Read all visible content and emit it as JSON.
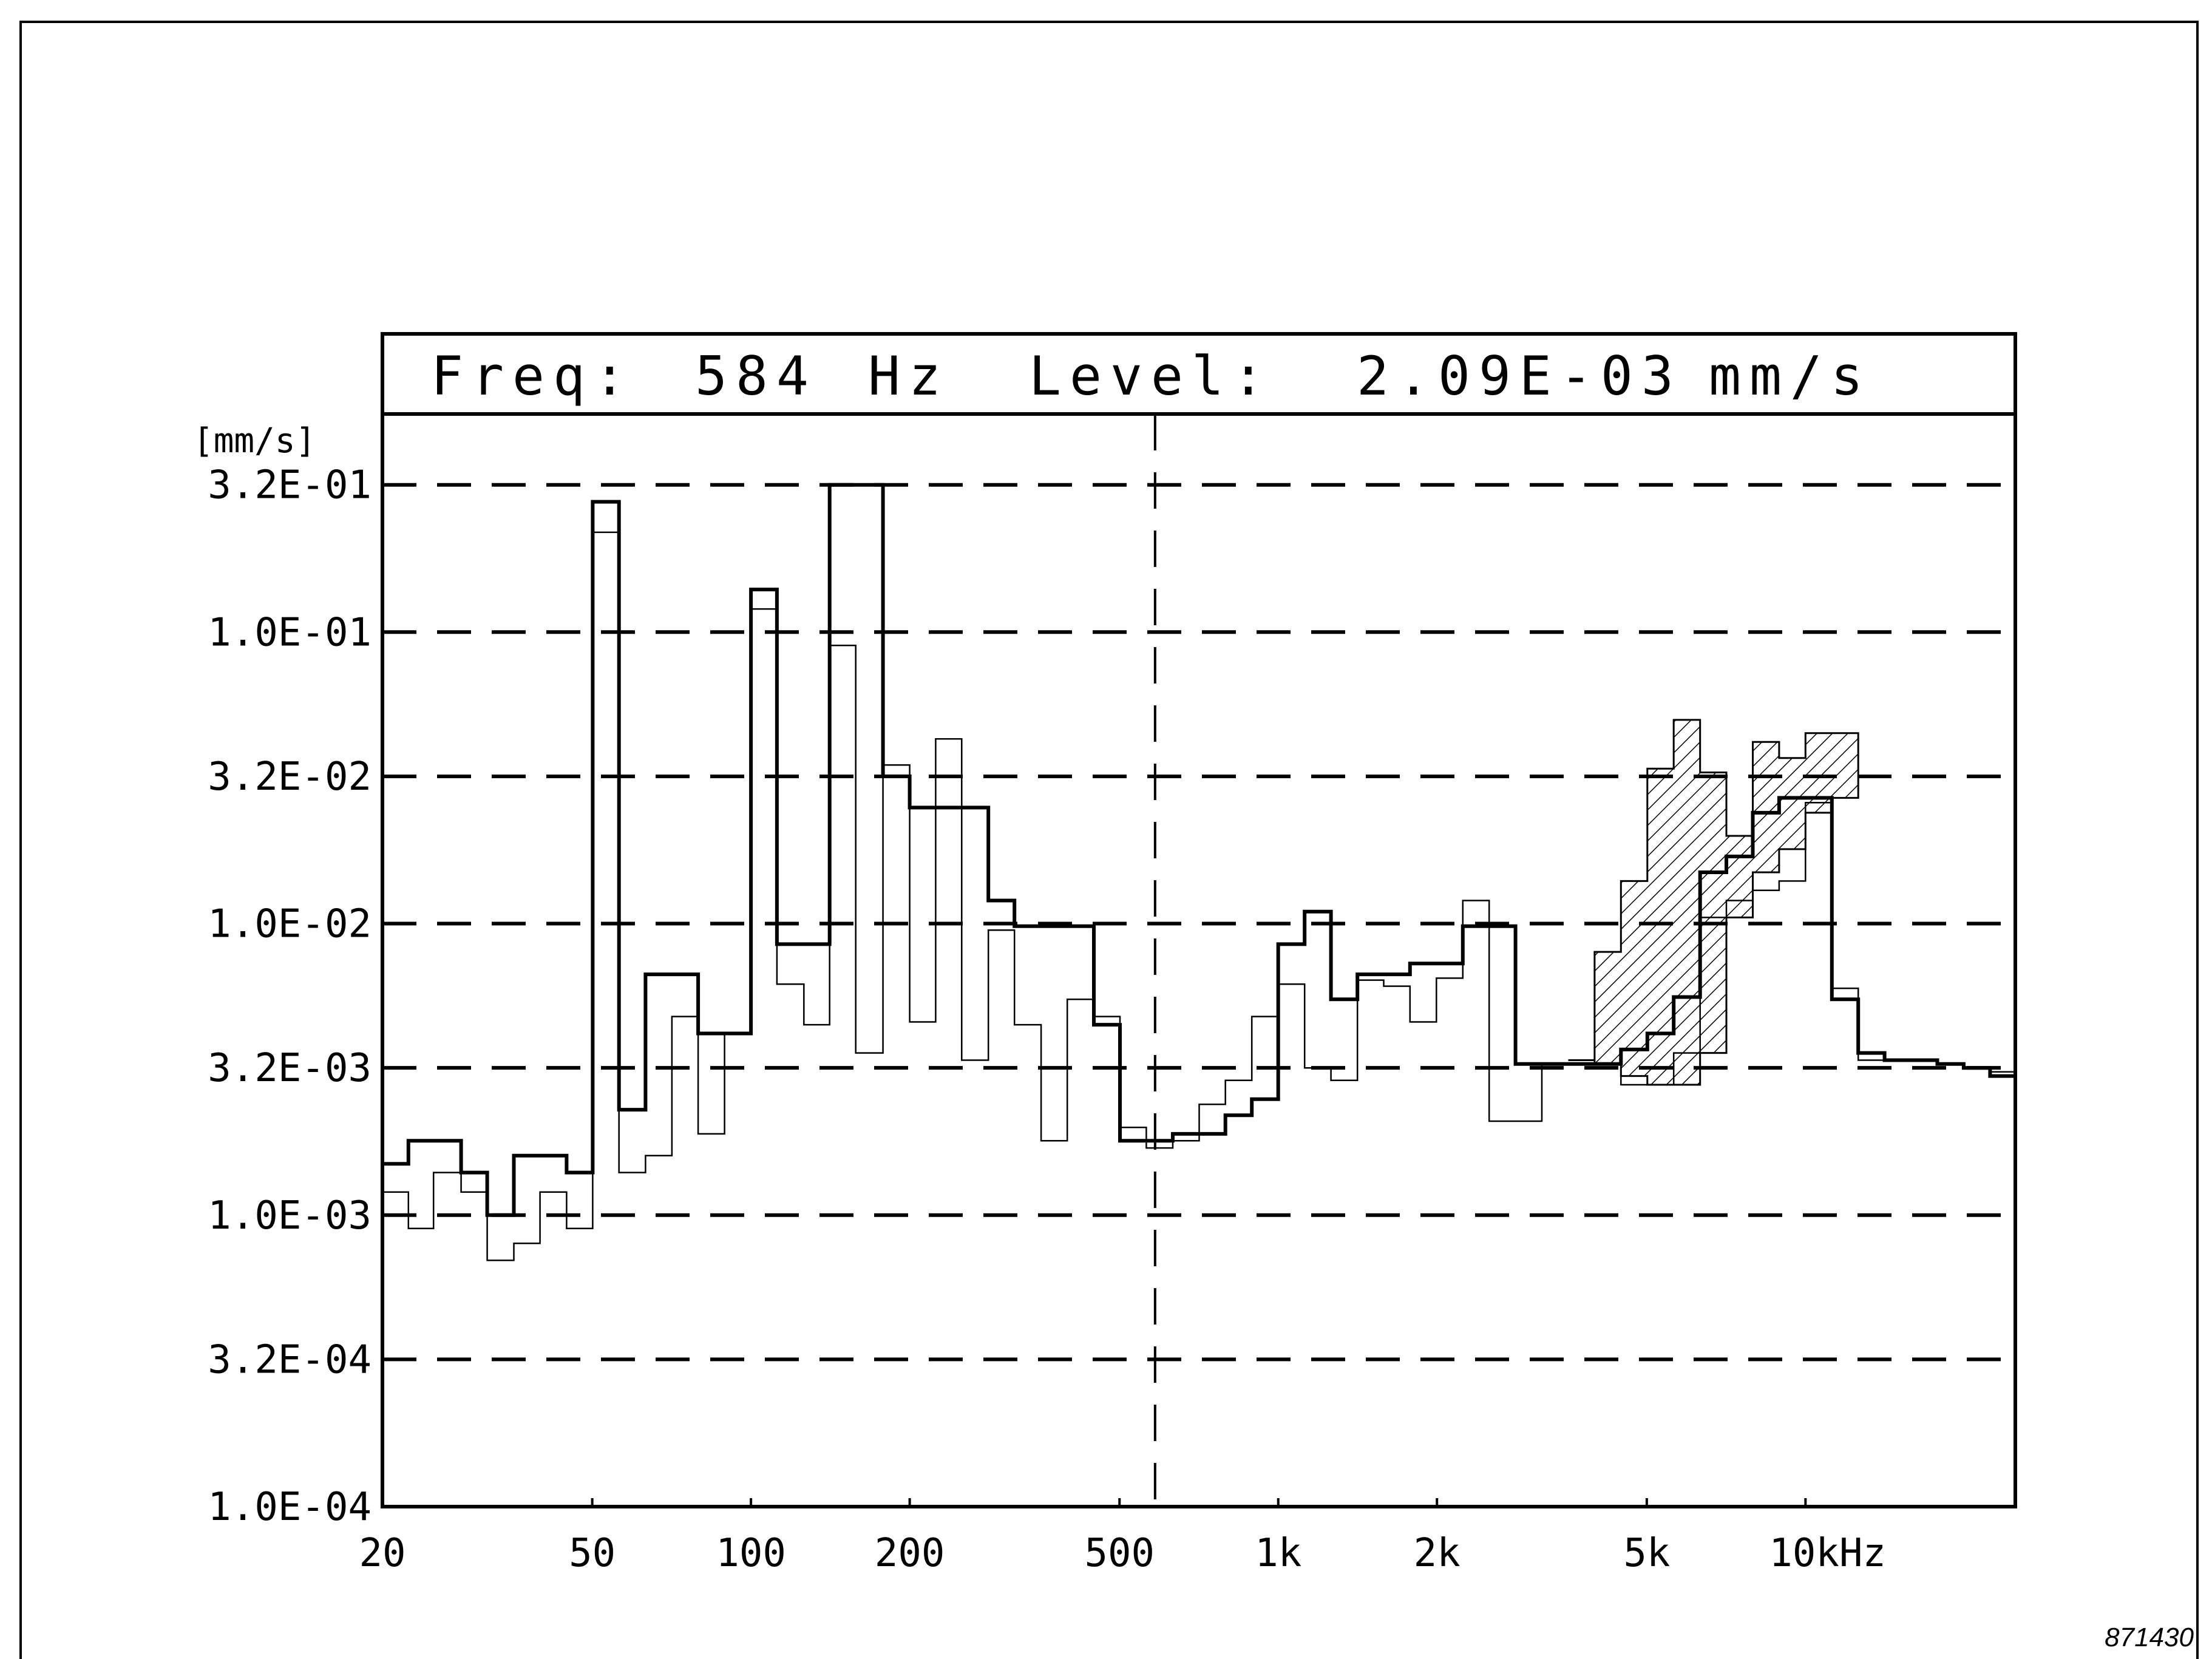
{
  "readout": {
    "freq_label": "Freq:",
    "freq_value": "584",
    "freq_unit": "Hz",
    "level_label": "Level:",
    "level_value": "2.09E-03",
    "level_unit": "mm/s"
  },
  "figure_number": "871430",
  "chart_data": {
    "type": "line",
    "title": "",
    "xlabel": "",
    "ylabel": "[mm/s]",
    "x_scale": "log",
    "y_scale": "log",
    "xlim": [
      20,
      25000
    ],
    "ylim": [
      0.0001,
      0.56
    ],
    "grid": "horizontal dashed",
    "y_ticks": [
      {
        "value": 0.0001,
        "label": "1.0E-04"
      },
      {
        "value": 0.00032,
        "label": "3.2E-04"
      },
      {
        "value": 0.001,
        "label": "1.0E-03"
      },
      {
        "value": 0.0032,
        "label": "3.2E-03"
      },
      {
        "value": 0.01,
        "label": "1.0E-02"
      },
      {
        "value": 0.032,
        "label": "3.2E-02"
      },
      {
        "value": 0.1,
        "label": "1.0E-01"
      },
      {
        "value": 0.32,
        "label": "3.2E-01"
      }
    ],
    "x_ticks": [
      {
        "value": 20,
        "label": "20"
      },
      {
        "value": 50,
        "label": "50"
      },
      {
        "value": 100,
        "label": "100"
      },
      {
        "value": 200,
        "label": "200"
      },
      {
        "value": 500,
        "label": "500"
      },
      {
        "value": 1000,
        "label": "1k"
      },
      {
        "value": 2000,
        "label": "2k"
      },
      {
        "value": 5000,
        "label": "5k"
      },
      {
        "value": 10000,
        "label": "10kHz"
      }
    ],
    "cursor_x": 584,
    "series": [
      {
        "line": "thick",
        "x": [
          20,
          22.4,
          25,
          28.2,
          31.6,
          35.5,
          39.8,
          44.7,
          50.1,
          56.2,
          63.1,
          70.8,
          79.4,
          89.1,
          100,
          112,
          126,
          141,
          158,
          178,
          200,
          224,
          251,
          282,
          316,
          355,
          398,
          447,
          501,
          562,
          631,
          708,
          794,
          891,
          1000,
          1122,
          1259,
          1413,
          1585,
          1778,
          1995,
          2239,
          2512,
          2818,
          3162,
          3548,
          3981,
          4467,
          5012,
          5623,
          6310,
          7079,
          7943,
          8913,
          10000,
          11220,
          12589,
          14125,
          15849,
          17783,
          19953,
          22387,
          25000
        ],
        "y": [
          0.0015,
          0.0018,
          0.0018,
          0.0014,
          0.001,
          0.0016,
          0.0016,
          0.0014,
          0.28,
          0.0023,
          0.0067,
          0.0067,
          0.0042,
          0.0042,
          0.14,
          0.0085,
          0.0085,
          0.32,
          0.32,
          0.032,
          0.025,
          0.025,
          0.025,
          0.012,
          0.0098,
          0.0098,
          0.0098,
          0.0045,
          0.0018,
          0.0018,
          0.0019,
          0.0019,
          0.0022,
          0.0025,
          0.0085,
          0.011,
          0.0055,
          0.0067,
          0.0067,
          0.0073,
          0.0073,
          0.0098,
          0.0098,
          0.0033,
          0.0033,
          0.0033,
          0.0033,
          0.0037,
          0.0042,
          0.0056,
          0.015,
          0.017,
          0.024,
          0.027,
          0.027,
          0.0055,
          0.0036,
          0.0034,
          0.0034,
          0.0033,
          0.0032,
          0.003,
          0.003
        ]
      },
      {
        "line": "thin",
        "x": [
          20,
          22.4,
          25,
          28.2,
          31.6,
          35.5,
          39.8,
          44.7,
          50.1,
          56.2,
          63.1,
          70.8,
          79.4,
          89.1,
          100,
          112,
          126,
          141,
          158,
          178,
          200,
          224,
          251,
          282,
          316,
          355,
          398,
          447,
          501,
          562,
          631,
          708,
          794,
          891,
          1000,
          1122,
          1259,
          1413,
          1585,
          1778,
          1995,
          2239,
          2512,
          2818,
          3162,
          3548,
          3981,
          4467,
          5012,
          5623,
          6310,
          7079,
          7943,
          8913,
          10000,
          11220,
          12589,
          14125,
          15849,
          17783,
          19953,
          22387,
          25000
        ],
        "y": [
          0.0012,
          0.0009,
          0.0014,
          0.0012,
          0.0007,
          0.0008,
          0.0012,
          0.0009,
          0.22,
          0.0014,
          0.0016,
          0.0048,
          0.0019,
          0.0042,
          0.12,
          0.0062,
          0.0045,
          0.09,
          0.0036,
          0.035,
          0.0046,
          0.043,
          0.0034,
          0.0095,
          0.0045,
          0.0018,
          0.0055,
          0.0048,
          0.002,
          0.0017,
          0.0018,
          0.0024,
          0.0029,
          0.0048,
          0.0062,
          0.0032,
          0.0029,
          0.0064,
          0.0061,
          0.0046,
          0.0065,
          0.012,
          0.0021,
          0.0021,
          0.0033,
          0.0033,
          0.0033,
          0.0028,
          0.0028,
          0.0036,
          0.0105,
          0.012,
          0.013,
          0.014,
          0.026,
          0.006,
          0.0034,
          0.0034,
          0.0034,
          0.0033,
          0.0032,
          0.0031,
          0.003
        ]
      },
      {
        "line": "hatched-envelope",
        "x": [
          3548,
          3981,
          4467,
          5012,
          5623,
          6310,
          7079,
          7943,
          8913,
          10000,
          11220
        ],
        "y_upper": [
          0.0034,
          0.008,
          0.014,
          0.034,
          0.05,
          0.033,
          0.02,
          0.042,
          0.037,
          0.045,
          0.045
        ],
        "y_lower": [
          0.0034,
          0.0033,
          0.003,
          0.0028,
          0.0028,
          0.0036,
          0.0105,
          0.015,
          0.018,
          0.024,
          0.027
        ]
      }
    ]
  }
}
